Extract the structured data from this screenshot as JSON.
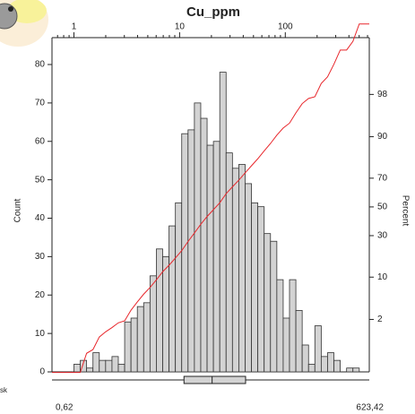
{
  "chart_data": {
    "type": "histogram",
    "title": "Cu_ppm",
    "ylabel": "Count",
    "y2label": "Percent",
    "side_text": "sk",
    "xscale": "log",
    "xlim": [
      0.62,
      623.42
    ],
    "xticks": [
      1,
      10,
      100
    ],
    "xminorticks": [
      0.7,
      0.8,
      0.9,
      2,
      3,
      4,
      5,
      6,
      7,
      8,
      9,
      20,
      30,
      40,
      50,
      60,
      70,
      80,
      90,
      200,
      300,
      400,
      500,
      600
    ],
    "ylim": [
      0,
      87
    ],
    "yticks": [
      0,
      10,
      20,
      30,
      40,
      50,
      60,
      70,
      80
    ],
    "y2scale": "probability",
    "y2lim": [
      0.13,
      99.9
    ],
    "y2ticks": [
      2,
      10,
      30,
      50,
      70,
      90,
      98
    ],
    "bins": [
      1.0,
      1.148,
      1.318,
      1.514,
      1.738,
      1.995,
      2.291,
      2.63,
      3.02,
      3.467,
      3.981,
      4.571,
      5.248,
      6.026,
      6.918,
      7.943,
      9.12,
      10.47,
      12.02,
      13.8,
      15.85,
      18.2,
      20.89,
      23.99,
      27.54,
      31.62,
      36.31,
      41.69,
      47.86,
      54.95,
      63.1,
      72.44,
      83.18,
      95.5,
      109.6,
      125.9,
      144.5,
      166.0,
      190.5,
      218.8,
      251.2,
      288.4,
      331.1,
      380.2,
      436.5,
      501.2
    ],
    "values": [
      2,
      3,
      1,
      5,
      3,
      3,
      4,
      2,
      13,
      14,
      17,
      18,
      25,
      32,
      30,
      38,
      44,
      62,
      63,
      70,
      66,
      59,
      60,
      78,
      57,
      53,
      54,
      49,
      44,
      43,
      36,
      34,
      24,
      14,
      24,
      16,
      7,
      2,
      12,
      4,
      5,
      3,
      0,
      1,
      1
    ],
    "color": "#d3d3d3",
    "edge_color": "#333333",
    "cumulative_color": "#e8262b",
    "box": {
      "min": {
        "value": 0.62,
        "label": "0,62"
      },
      "q1": 11.0,
      "median": 20.3,
      "q3": 42.1,
      "max": {
        "value": 623.42,
        "label": "623,42"
      }
    }
  }
}
